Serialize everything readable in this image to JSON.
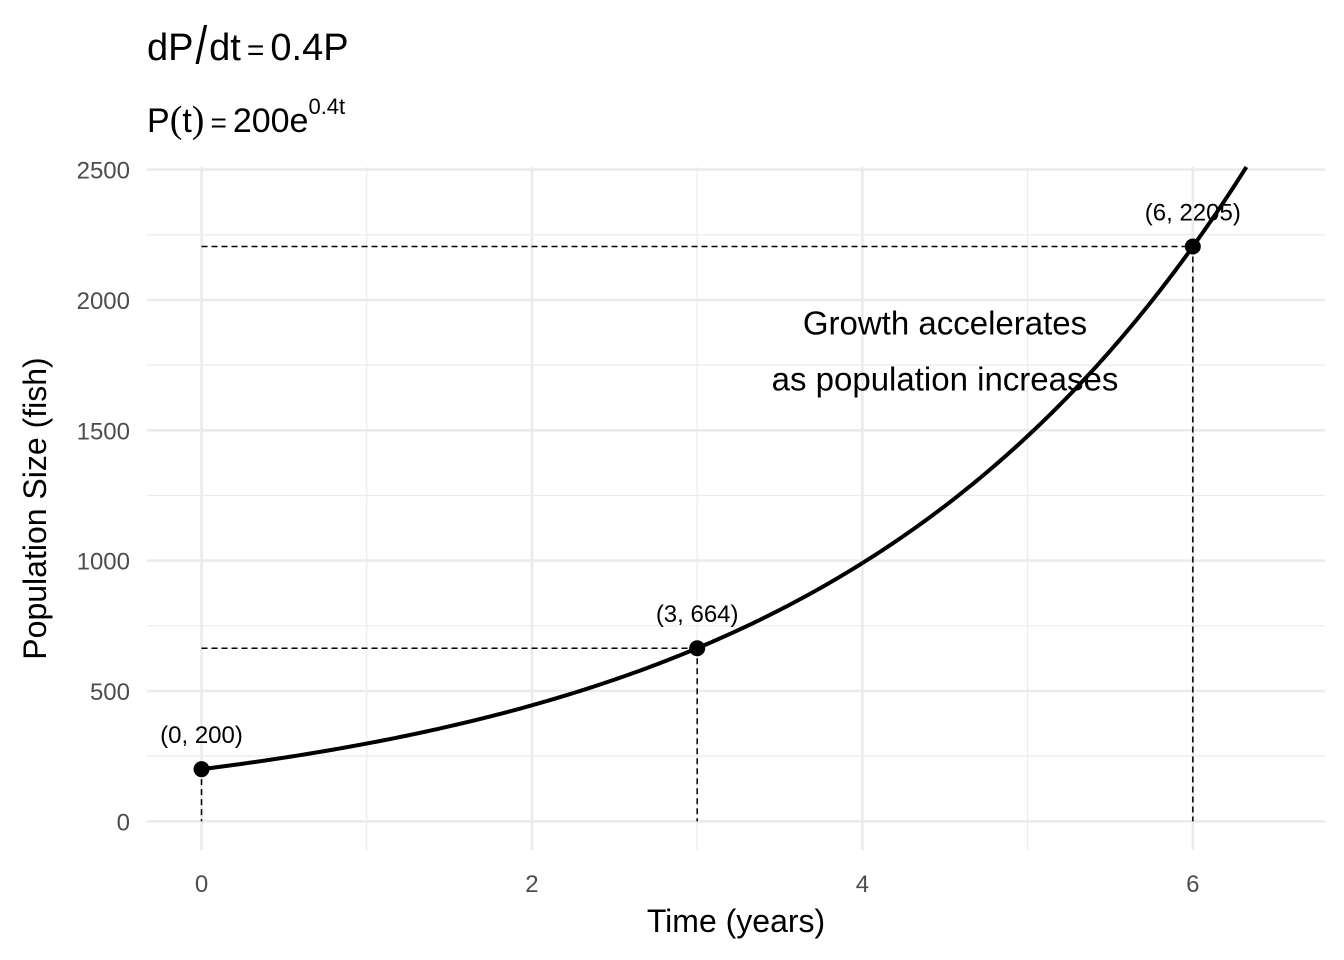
{
  "titles": {
    "main": {
      "lhs_num": "dP",
      "slash": "/",
      "lhs_den": "dt",
      "eq": "=",
      "rhs": "0.4P"
    },
    "sub": {
      "lhs": "P",
      "paren_open": "(",
      "arg": "t",
      "paren_close": ")",
      "eq": "=",
      "rhs_base": "200e",
      "rhs_exp": "0.4t"
    }
  },
  "chart_data": {
    "type": "line",
    "xlabel": "Time (years)",
    "ylabel": "Population Size (fish)",
    "xlim": [
      -0.33,
      6.8
    ],
    "ylim": [
      -110,
      2510
    ],
    "x_ticks": [
      0,
      2,
      4,
      6
    ],
    "x_tick_labels": [
      "0",
      "2",
      "4",
      "6"
    ],
    "y_ticks": [
      0,
      500,
      1000,
      1500,
      2000,
      2500
    ],
    "y_tick_labels": [
      "0",
      "500",
      "1000",
      "1500",
      "2000",
      "2500"
    ],
    "grid": true,
    "series": [
      {
        "function": "200*exp(0.4*t)",
        "x_range": [
          0,
          6.8
        ],
        "color": "#000000"
      }
    ],
    "points": [
      {
        "x": 0,
        "y": 200,
        "label": "(0, 200)"
      },
      {
        "x": 3,
        "y": 664,
        "label": "(3, 664)"
      },
      {
        "x": 6,
        "y": 2205,
        "label": "(6, 2205)"
      }
    ],
    "annotation": {
      "lines": [
        "Growth accelerates",
        "as population increases"
      ],
      "x": 4.5,
      "y": 1810
    }
  },
  "colors": {
    "line": "#000000",
    "grid": "#ebebeb",
    "tick_text": "#4d4d4d"
  }
}
